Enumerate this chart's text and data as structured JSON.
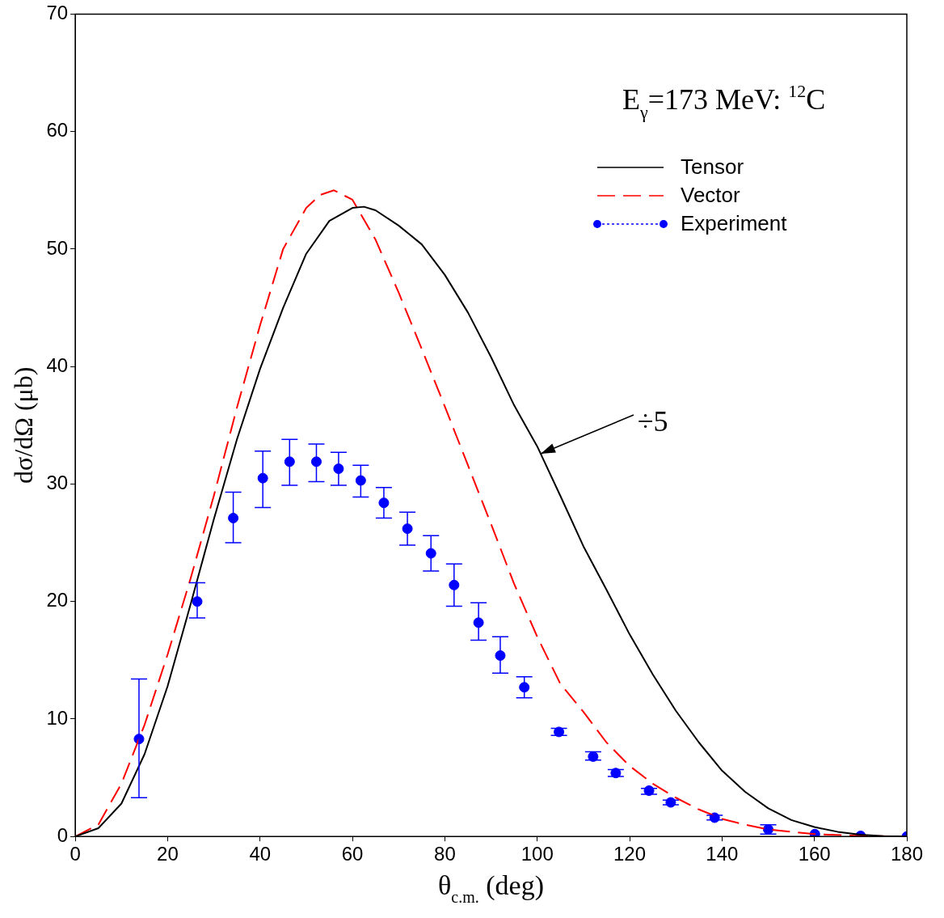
{
  "chart_data": {
    "type": "line",
    "xlabel": "θ$_{c.m.}$ (deg)",
    "ylabel": "dσ/dΩ (μb)",
    "annotations": [
      "E$_{γ}$=173 MeV: $^{12}$C",
      {
        "text": "÷5",
        "x": 100.7,
        "y": 32.6
      }
    ],
    "xlim": [
      0,
      180
    ],
    "xticks": [
      0,
      20,
      40,
      60,
      80,
      100,
      120,
      140,
      160,
      180
    ],
    "ylim": [
      0,
      70
    ],
    "yticks": [
      0,
      10,
      20,
      30,
      40,
      50,
      60,
      70
    ],
    "grid": false,
    "legend": "top right",
    "series": [
      {
        "name": "Tensor",
        "color": "#000000",
        "line_style": "solid",
        "marker": "none",
        "x": [
          0,
          5,
          10,
          15,
          20,
          25,
          30,
          35,
          40,
          45,
          50,
          55,
          60,
          62.5,
          65,
          70,
          75,
          80,
          85,
          90,
          95,
          100,
          105,
          110,
          115,
          120,
          125,
          130,
          135,
          140,
          145,
          150,
          155,
          160,
          165,
          170,
          175,
          180
        ],
        "values": [
          0,
          0.7,
          2.8,
          7,
          12.8,
          19.8,
          27,
          33.8,
          39.8,
          45,
          49.6,
          52.4,
          53.5,
          53.6,
          53.3,
          52,
          50.4,
          47.8,
          44.6,
          40.8,
          36.7,
          33.2,
          29,
          24.7,
          21,
          17.2,
          13.8,
          10.7,
          8,
          5.6,
          3.8,
          2.4,
          1.4,
          0.8,
          0.4,
          0.15,
          0.03,
          0
        ]
      },
      {
        "name": "Vector",
        "color": "#ff0000",
        "line_style": "dashed",
        "marker": "none",
        "x": [
          0,
          5,
          10,
          15,
          20,
          25,
          30,
          35,
          40,
          45,
          50,
          53,
          56,
          60,
          65,
          70,
          75,
          80,
          85,
          90,
          95,
          100,
          105,
          110,
          115,
          120,
          125,
          130,
          135,
          140,
          145,
          150,
          160,
          170,
          180
        ],
        "values": [
          0,
          1,
          4.5,
          9.5,
          15.5,
          22,
          29,
          36.5,
          43.5,
          50,
          53.5,
          54.6,
          55,
          54.2,
          50.8,
          46.3,
          41.5,
          36.6,
          31.6,
          26.6,
          21.5,
          17,
          13,
          10.6,
          8,
          6,
          4.5,
          3.3,
          2.3,
          1.5,
          1,
          0.6,
          0.2,
          0.05,
          0
        ]
      },
      {
        "name": "Experiment",
        "type": "scatter",
        "color": "#0000ff",
        "marker": "circle",
        "x": [
          13.8,
          26.4,
          34.2,
          40.6,
          46.4,
          52.2,
          57,
          61.8,
          66.8,
          71.9,
          77,
          82,
          87.3,
          92,
          97.2,
          104.7,
          112.1,
          117,
          124.2,
          128.9,
          138.4,
          150,
          160.1,
          170,
          180
        ],
        "values": [
          8.3,
          20,
          27.1,
          30.5,
          31.9,
          31.9,
          31.3,
          30.3,
          28.4,
          26.2,
          24.1,
          21.4,
          18.2,
          15.4,
          12.7,
          8.9,
          6.8,
          5.4,
          3.9,
          2.9,
          1.6,
          0.6,
          0.2,
          0.05,
          0
        ],
        "errors": [
          [
            3.3,
            13.4
          ],
          [
            18.6,
            21.6
          ],
          [
            25,
            29.3
          ],
          [
            28,
            32.8
          ],
          [
            29.9,
            33.8
          ],
          [
            30.2,
            33.4
          ],
          [
            29.9,
            32.7
          ],
          [
            28.9,
            31.6
          ],
          [
            27.1,
            29.7
          ],
          [
            24.8,
            27.6
          ],
          [
            22.6,
            25.6
          ],
          [
            19.6,
            23.2
          ],
          [
            16.7,
            19.9
          ],
          [
            13.9,
            17
          ],
          [
            11.8,
            13.6
          ],
          [
            8.6,
            9.2
          ],
          [
            6.5,
            7.2
          ],
          [
            5.1,
            5.7
          ],
          [
            3.6,
            4.1
          ],
          [
            2.7,
            3.1
          ],
          [
            1.4,
            1.8
          ],
          [
            0.2,
            1
          ],
          null,
          null,
          null
        ]
      }
    ]
  }
}
